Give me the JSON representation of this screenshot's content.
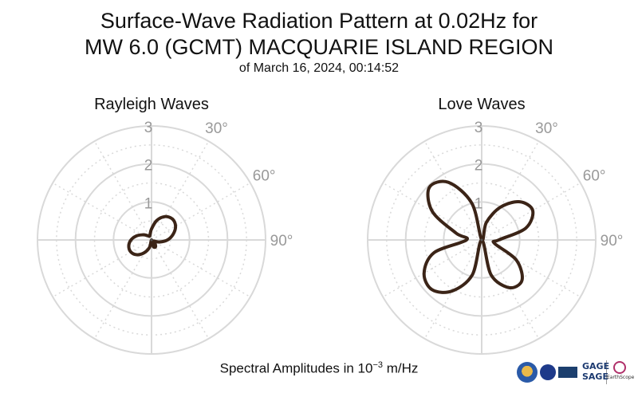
{
  "title_line1": "Surface-Wave Radiation Pattern at 0.02Hz for",
  "title_line2": "MW 6.0 (GCMT) MACQUARIE ISLAND REGION",
  "subtitle": "of March 16, 2024, 00:14:52",
  "footer": {
    "text_prefix": "Spectral Amplitudes in 10",
    "exponent": "−3",
    "text_suffix": " m/Hz"
  },
  "logos": {
    "gage": "GAGE",
    "sage": "SAGE",
    "earthscope": "EarthScope"
  },
  "colors": {
    "curve": "#3b2417",
    "grid": "#d9d9d9",
    "tick_label": "#999999"
  },
  "chart_data": [
    {
      "type": "polar-line",
      "title": "Rayleigh Waves",
      "r_ticks": [
        1,
        2,
        3
      ],
      "r_range": [
        0,
        3
      ],
      "angle_labels": [
        "30°",
        "60°",
        "90°"
      ],
      "angle_direction": "clockwise from north",
      "grid": true,
      "series": [
        {
          "theta_deg": [
            0,
            15,
            30,
            45,
            60,
            75,
            90,
            105,
            120,
            135,
            150,
            165,
            180,
            195,
            210,
            225,
            240,
            255,
            270,
            285,
            300,
            315,
            330,
            345,
            360
          ],
          "r": [
            0.29,
            0.53,
            0.71,
            0.78,
            0.73,
            0.59,
            0.42,
            0.21,
            0.06,
            0.13,
            0.21,
            0.18,
            0.0,
            0.2,
            0.39,
            0.55,
            0.63,
            0.62,
            0.54,
            0.41,
            0.27,
            0.17,
            0.11,
            0.15,
            0.29
          ]
        }
      ]
    },
    {
      "type": "polar-line",
      "title": "Love Waves",
      "r_ticks": [
        1,
        2,
        3
      ],
      "r_range": [
        0,
        3
      ],
      "angle_labels": [
        "30°",
        "60°",
        "90°"
      ],
      "angle_direction": "clockwise from north",
      "grid": true,
      "series": [
        {
          "theta_deg": [
            0,
            15,
            30,
            45,
            60,
            75,
            90,
            105,
            120,
            135,
            150,
            165,
            180,
            195,
            210,
            225,
            240,
            255,
            270,
            285,
            300,
            315,
            330,
            345,
            360
          ],
          "r": [
            0.0,
            0.48,
            1.0,
            1.42,
            1.55,
            1.2,
            0.45,
            0.35,
            1.05,
            1.5,
            1.45,
            0.95,
            0.0,
            0.95,
            1.55,
            1.85,
            1.75,
            1.3,
            0.4,
            0.7,
            1.5,
            1.95,
            1.75,
            1.0,
            0.0
          ]
        }
      ]
    }
  ]
}
